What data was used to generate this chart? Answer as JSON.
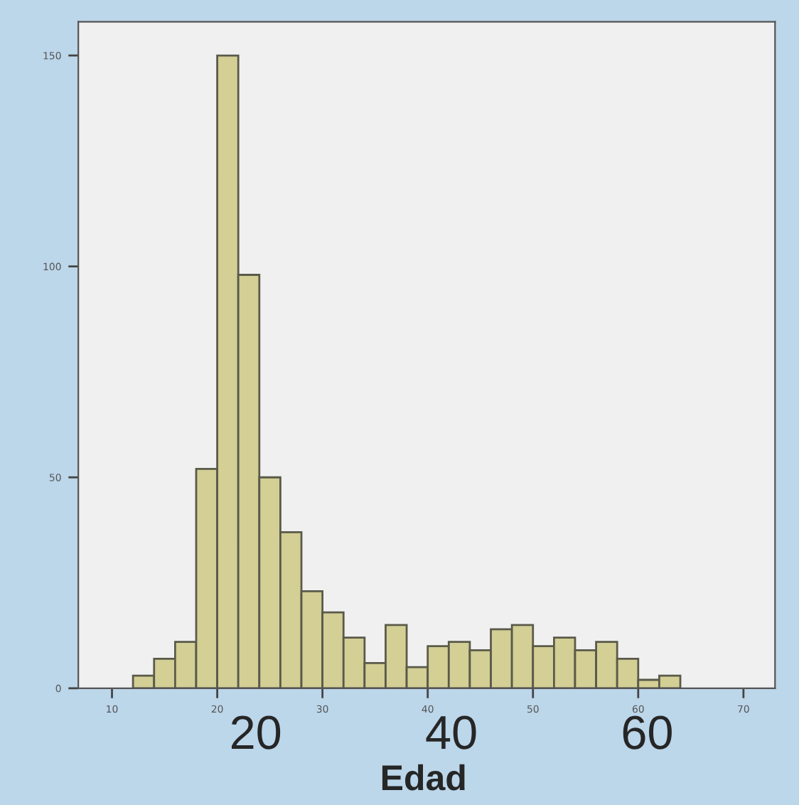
{
  "chart_data": {
    "type": "histogram",
    "xlabel": "Edad",
    "bins": [
      12,
      14,
      16,
      18,
      20,
      22,
      24,
      26,
      28,
      30,
      32,
      34,
      36,
      38,
      40,
      42,
      44,
      46,
      48,
      50,
      52,
      54,
      56,
      58,
      60,
      62,
      64
    ],
    "values": [
      3,
      7,
      11,
      52,
      150,
      98,
      50,
      37,
      23,
      18,
      12,
      6,
      15,
      5,
      10,
      11,
      9,
      14,
      15,
      10,
      12,
      9,
      11,
      7,
      2,
      3
    ],
    "color": "#d3cf95",
    "xlim": [
      6.8,
      73
    ],
    "xticks": [
      10,
      20,
      30,
      40,
      50,
      60,
      70
    ],
    "ylim": [
      0,
      158
    ],
    "yticks": [
      0,
      50,
      100,
      150
    ],
    "annotations": [
      "20",
      "40",
      "60"
    ],
    "grid": false,
    "legend": false
  }
}
